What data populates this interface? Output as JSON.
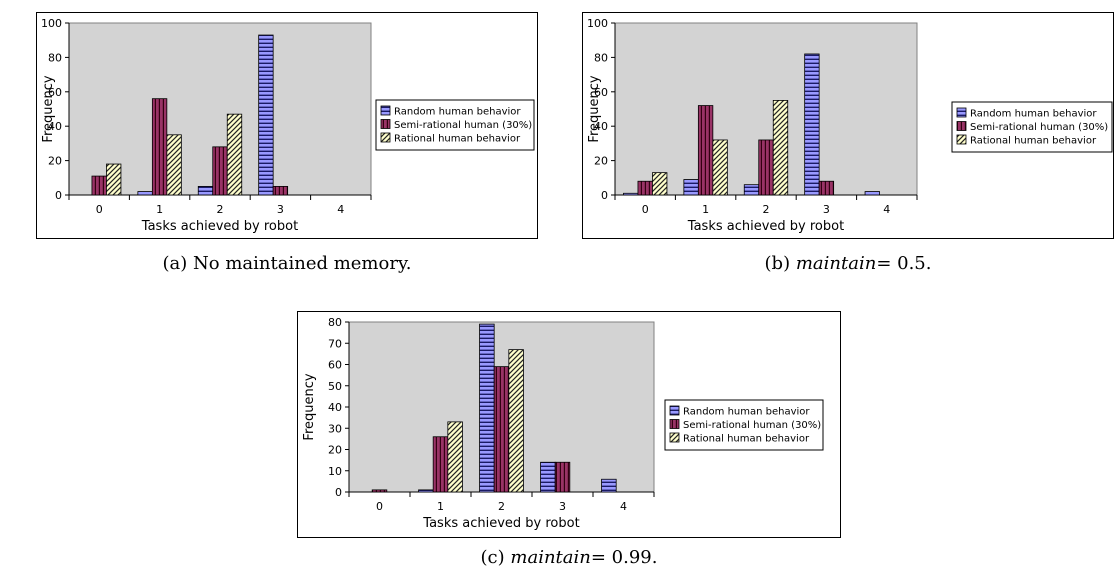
{
  "figures": [
    {
      "caption_label": "(a)",
      "caption_text": "No maintained memory.",
      "caption_em": "",
      "caption_value": "",
      "chart_data": {
        "type": "bar",
        "xlabel": "Tasks achieved by robot",
        "ylabel": "Frequency",
        "categories": [
          "0",
          "1",
          "2",
          "3",
          "4"
        ],
        "ylim": [
          0,
          100
        ],
        "yticks": [
          "0",
          "20",
          "40",
          "60",
          "80",
          "100"
        ],
        "legend_position": "right",
        "grid": false,
        "series": [
          {
            "name": "Random human behavior",
            "values": [
              0,
              2,
              5,
              93,
              0
            ]
          },
          {
            "name": "Semi-rational human (30%)",
            "values": [
              11,
              56,
              28,
              5,
              0
            ]
          },
          {
            "name": "Rational human behavior",
            "values": [
              18,
              35,
              47,
              0,
              0
            ]
          }
        ]
      }
    },
    {
      "caption_label": "(b)",
      "caption_text": "",
      "caption_em": "maintain",
      "caption_value": "= 0.5.",
      "chart_data": {
        "type": "bar",
        "xlabel": "Tasks achieved by robot",
        "ylabel": "Frequency",
        "categories": [
          "0",
          "1",
          "2",
          "3",
          "4"
        ],
        "ylim": [
          0,
          100
        ],
        "yticks": [
          "0",
          "20",
          "40",
          "60",
          "80",
          "100"
        ],
        "legend_position": "right",
        "grid": false,
        "series": [
          {
            "name": "Random human behavior",
            "values": [
              1,
              9,
              6,
              82,
              2
            ]
          },
          {
            "name": "Semi-rational human (30%)",
            "values": [
              8,
              52,
              32,
              8,
              0
            ]
          },
          {
            "name": "Rational human behavior",
            "values": [
              13,
              32,
              55,
              0,
              0
            ]
          }
        ]
      }
    },
    {
      "caption_label": "(c)",
      "caption_text": "",
      "caption_em": "maintain",
      "caption_value": "= 0.99.",
      "chart_data": {
        "type": "bar",
        "xlabel": "Tasks achieved by robot",
        "ylabel": "Frequency",
        "categories": [
          "0",
          "1",
          "2",
          "3",
          "4"
        ],
        "ylim": [
          0,
          80
        ],
        "yticks": [
          "0",
          "10",
          "20",
          "30",
          "40",
          "50",
          "60",
          "70",
          "80"
        ],
        "legend_position": "right",
        "grid": false,
        "series": [
          {
            "name": "Random human behavior",
            "values": [
              0,
              1,
              79,
              14,
              6
            ]
          },
          {
            "name": "Semi-rational human (30%)",
            "values": [
              1,
              26,
              59,
              14,
              0
            ]
          },
          {
            "name": "Rational human behavior",
            "values": [
              0,
              33,
              67,
              0,
              0
            ]
          }
        ]
      }
    }
  ],
  "colors": {
    "plot_bg": "#d3d3d3",
    "series": [
      "#9999ff",
      "#993366",
      "#ffffcc"
    ],
    "stroke": "#000000"
  }
}
